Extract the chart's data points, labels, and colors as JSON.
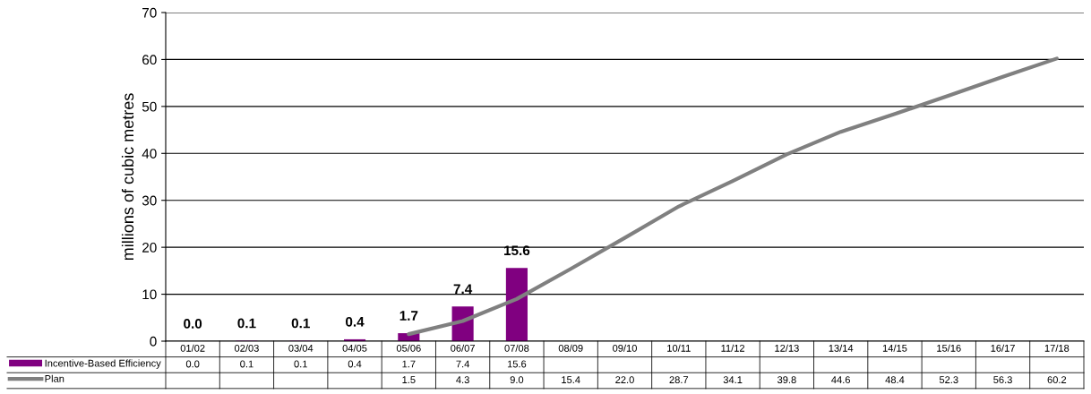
{
  "chart_data": {
    "type": "bar",
    "ylabel": "millions of cubic metres",
    "categories": [
      "01/02",
      "02/03",
      "03/04",
      "04/05",
      "05/06",
      "06/07",
      "07/08",
      "08/09",
      "09/10",
      "10/11",
      "11/12",
      "12/13",
      "13/14",
      "14/15",
      "15/16",
      "16/17",
      "17/18"
    ],
    "series": [
      {
        "name": "Incentive-Based Efficiency",
        "color": "#800080",
        "values": [
          0.0,
          0.1,
          0.1,
          0.4,
          1.7,
          7.4,
          15.6,
          null,
          null,
          null,
          null,
          null,
          null,
          null,
          null,
          null,
          null
        ],
        "value_labels": [
          "0.0",
          "0.1",
          "0.1",
          "0.4",
          "1.7",
          "7.4",
          "15.6",
          null,
          null,
          null,
          null,
          null,
          null,
          null,
          null,
          null,
          null
        ]
      },
      {
        "name": "Plan",
        "type": "line",
        "color": "#808080",
        "values": [
          null,
          null,
          null,
          null,
          1.5,
          4.3,
          9.0,
          15.4,
          22.0,
          28.7,
          34.1,
          39.8,
          44.6,
          48.4,
          52.3,
          56.3,
          60.2
        ],
        "value_labels": [
          null,
          null,
          null,
          null,
          "1.5",
          "4.3",
          "9.0",
          "15.4",
          "22.0",
          "28.7",
          "34.1",
          "39.8",
          "44.6",
          "48.4",
          "52.3",
          "56.3",
          "60.2"
        ]
      }
    ],
    "ylim": [
      0,
      70
    ],
    "yticks": [
      0,
      10,
      20,
      30,
      40,
      50,
      60,
      70
    ],
    "grid": "y",
    "legend": "bottom",
    "marker": "none",
    "line_style": "solid"
  }
}
